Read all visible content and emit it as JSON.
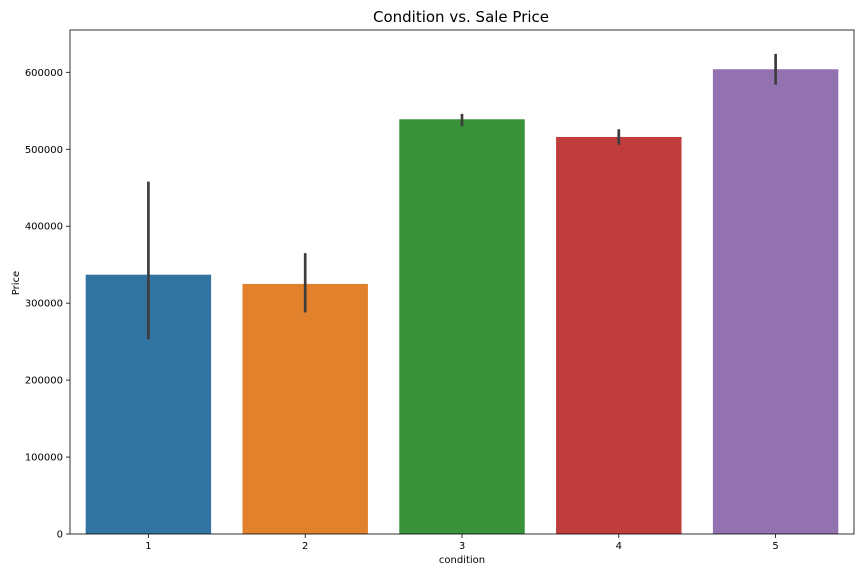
{
  "chart_data": {
    "type": "bar",
    "title": "Condition vs. Sale Price",
    "xlabel": "condition",
    "ylabel": "Price",
    "categories": [
      "1",
      "2",
      "3",
      "4",
      "5"
    ],
    "values": [
      337000,
      325000,
      539000,
      516000,
      604000
    ],
    "error_low": [
      253000,
      288000,
      530000,
      506000,
      584000
    ],
    "error_high": [
      458000,
      365000,
      546000,
      526000,
      624000
    ],
    "colors": [
      "#3274a1",
      "#e1812c",
      "#3a923a",
      "#c03d3e",
      "#9372b2"
    ],
    "ylim": [
      0,
      655000
    ],
    "yticks": [
      0,
      100000,
      200000,
      300000,
      400000,
      500000,
      600000
    ],
    "ytick_labels": [
      "0",
      "100000",
      "200000",
      "300000",
      "400000",
      "500000",
      "600000"
    ],
    "grid": false,
    "legend": "none"
  }
}
